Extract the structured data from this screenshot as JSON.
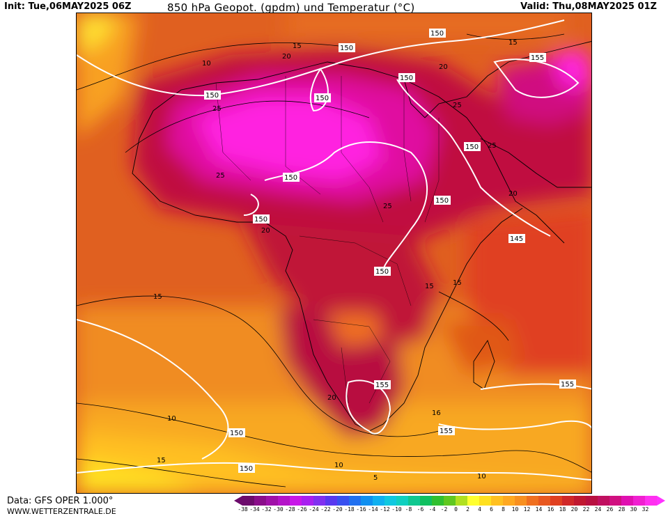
{
  "header": {
    "init": "Init: Tue,06MAY2025 06Z",
    "title": "850 hPa Geopot. (gpdm) und Temperatur (°C)",
    "valid": "Valid: Thu,08MAY2025 01Z"
  },
  "footer": {
    "data_source": "Data: GFS OPER 1.000°",
    "website": "WWW.WETTERZENTRALE.DE"
  },
  "geopotential_labels": [
    "150",
    "150",
    "150",
    "150",
    "150",
    "150",
    "150",
    "150",
    "150",
    "150",
    "145",
    "155",
    "155",
    "155",
    "155",
    "150",
    "150"
  ],
  "temperature_labels": [
    "15",
    "20",
    "10",
    "25",
    "25",
    "25",
    "15",
    "20",
    "10",
    "20",
    "15",
    "25",
    "15",
    "20",
    "10",
    "5",
    "10",
    "16",
    "15",
    "20",
    "15",
    "25"
  ],
  "colorbar": {
    "ticks": [
      "-38",
      "-34",
      "-32",
      "-30",
      "-28",
      "-26",
      "-24",
      "-22",
      "-20",
      "-18",
      "-16",
      "-14",
      "-12",
      "-10",
      "-8",
      "-6",
      "-4",
      "-2",
      "0",
      "2",
      "4",
      "6",
      "8",
      "10",
      "12",
      "14",
      "16",
      "18",
      "20",
      "22",
      "24",
      "26",
      "28",
      "30",
      "32"
    ],
    "colors": [
      "#6c0b6c",
      "#8a0d8a",
      "#a010a8",
      "#b414c8",
      "#c818e8",
      "#a820f0",
      "#8030f0",
      "#5838f0",
      "#3850f0",
      "#2070f0",
      "#1090f0",
      "#10b0f0",
      "#10c8e0",
      "#10d0c0",
      "#10c890",
      "#10c060",
      "#30c030",
      "#60c820",
      "#b0e020",
      "#ffff30",
      "#ffe020",
      "#ffc020",
      "#ffa820",
      "#f89020",
      "#f07020",
      "#e85820",
      "#e04020",
      "#d02828",
      "#c01830",
      "#b81040",
      "#c01060",
      "#d01080",
      "#e010b0",
      "#f020d0",
      "#ff30f0"
    ]
  }
}
